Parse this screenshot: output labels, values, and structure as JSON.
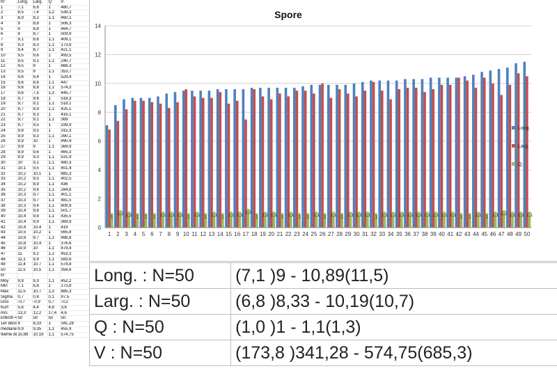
{
  "sheet": {
    "header": [
      "N°",
      "Long.",
      "Larg.",
      "Q",
      "V"
    ],
    "rows": [
      [
        "1",
        "7,1",
        "6,8",
        "1",
        "480,7"
      ],
      [
        "2",
        "8,5",
        "7,4",
        "1,2",
        "539,3"
      ],
      [
        "3",
        "8,9",
        "8,2",
        "1,1",
        "460,1"
      ],
      [
        "4",
        "9",
        "8,8",
        "1",
        "506,3"
      ],
      [
        "5",
        "9",
        "8,8",
        "1",
        "464,7"
      ],
      [
        "6",
        "9",
        "8,7",
        "1",
        "509,9"
      ],
      [
        "7",
        "9,1",
        "8,6",
        "1,1",
        "409,1"
      ],
      [
        "8",
        "9,3",
        "8,3",
        "1,1",
        "173,8"
      ],
      [
        "9",
        "9,4",
        "8,7",
        "1,1",
        "421,1"
      ],
      [
        "10",
        "9,5",
        "9,6",
        "1",
        "493,5"
      ],
      [
        "11",
        "9,5",
        "9,1",
        "1,1",
        "240,7"
      ],
      [
        "12",
        "9,5",
        "9",
        "1",
        "666,3"
      ],
      [
        "13",
        "9,5",
        "9",
        "1,1",
        "353,7"
      ],
      [
        "14",
        "9,6",
        "9,4",
        "1",
        "529,4"
      ],
      [
        "15",
        "9,6",
        "8,6",
        "1,1",
        "447"
      ],
      [
        "16",
        "9,6",
        "8,8",
        "1,1",
        "574,3"
      ],
      [
        "17",
        "9,6",
        "7,5",
        "1,3",
        "445,7"
      ],
      [
        "18",
        "9,7",
        "9,6",
        "1",
        "518,3"
      ],
      [
        "19",
        "9,7",
        "9,1",
        "1,1",
        "518,1"
      ],
      [
        "20",
        "9,7",
        "8,9",
        "1,1",
        "425,1"
      ],
      [
        "21",
        "9,7",
        "9,3",
        "1",
        "416,1"
      ],
      [
        "22",
        "9,7",
        "9,1",
        "1,1",
        "369"
      ],
      [
        "23",
        "9,7",
        "9,5",
        "1",
        "339,9"
      ],
      [
        "24",
        "9,8",
        "9,5",
        "1",
        "315,3"
      ],
      [
        "25",
        "9,9",
        "9,3",
        "1,1",
        "390,1"
      ],
      [
        "26",
        "9,9",
        "10",
        "1",
        "490,4"
      ],
      [
        "27",
        "9,9",
        "9",
        "1,1",
        "369,9"
      ],
      [
        "28",
        "9,9",
        "9,6",
        "1",
        "465,3"
      ],
      [
        "29",
        "9,9",
        "9,3",
        "1,1",
        "531,9"
      ],
      [
        "30",
        "10",
        "9,1",
        "1,1",
        "480,3"
      ],
      [
        "31",
        "10,1",
        "9,5",
        "1,1",
        "401,4"
      ],
      [
        "32",
        "10,2",
        "10,1",
        "1",
        "685,3"
      ],
      [
        "33",
        "10,2",
        "9,5",
        "1,1",
        "402,5"
      ],
      [
        "34",
        "10,2",
        "8,9",
        "1,1",
        "436"
      ],
      [
        "35",
        "10,2",
        "9,6",
        "1,1",
        "284,6"
      ],
      [
        "36",
        "10,3",
        "9,7",
        "1,1",
        "401,1"
      ],
      [
        "37",
        "10,3",
        "9,7",
        "1,1",
        "481,5"
      ],
      [
        "38",
        "10,3",
        "9,4",
        "1,1",
        "609,9"
      ],
      [
        "39",
        "10,4",
        "9,6",
        "1,1",
        "501,7"
      ],
      [
        "40",
        "10,4",
        "9,9",
        "1,1",
        "435,5"
      ],
      [
        "41",
        "10,4",
        "9,9",
        "1,1",
        "369,9"
      ],
      [
        "42",
        "10,4",
        "10,4",
        "1",
        "419"
      ],
      [
        "43",
        "10,5",
        "10,2",
        "1",
        "565,8"
      ],
      [
        "44",
        "10,6",
        "9,7",
        "1,1",
        "488,8"
      ],
      [
        "45",
        "10,8",
        "10,4",
        "1",
        "376,6"
      ],
      [
        "46",
        "10,9",
        "10",
        "1,1",
        "479,4"
      ],
      [
        "47",
        "11",
        "9,2",
        "1,2",
        "453,3"
      ],
      [
        "48",
        "11,1",
        "9,9",
        "1,1",
        "583,6"
      ],
      [
        "49",
        "11,4",
        "10,7",
        "1,1",
        "574,8"
      ],
      [
        "50",
        "11,5",
        "10,5",
        "1,1",
        "356,6"
      ]
    ],
    "stats_header": [
      "N°",
      "",
      "",
      "",
      ""
    ],
    "stats": [
      [
        "Moy",
        "9,9",
        "9,3",
        "1,1",
        "452,2"
      ],
      [
        "Min",
        "7,1",
        "6,8",
        "1",
        "173,8"
      ],
      [
        "Max",
        "11,5",
        "10,7",
        "1,3",
        "685,3"
      ],
      [
        "Sigma",
        "0,7",
        "0,8",
        "0,1",
        "97,5"
      ],
      [
        "Diss",
        "-0,7",
        "-0,9",
        "0,7",
        "-0,2"
      ],
      [
        "Kurt",
        "5,6",
        "4,4",
        "4,8",
        "3,6"
      ],
      [
        "m/s",
        "13,3",
        "12,2",
        "17,4",
        "4,6"
      ],
      [
        "Effectif =",
        "50",
        "50",
        "50",
        "50"
      ],
      [
        "1er décile",
        "9",
        "8,33",
        "1",
        "341,28"
      ],
      [
        "médiane",
        "9,9",
        "9,35",
        "1,1",
        "455,9"
      ],
      [
        "9ième décile",
        "10,89",
        "10,19",
        "1,1",
        "574,75"
      ]
    ]
  },
  "chart_data": {
    "type": "bar",
    "title": "Spore",
    "xlabel": "",
    "ylabel": "",
    "ylim": [
      0,
      14
    ],
    "yticks": [
      0,
      2,
      4,
      6,
      8,
      10,
      12,
      14
    ],
    "grid": true,
    "legend_position": "right",
    "data_labels_series": "Q.",
    "categories": [
      "1",
      "2",
      "3",
      "4",
      "5",
      "6",
      "7",
      "8",
      "9",
      "10",
      "11",
      "12",
      "13",
      "14",
      "15",
      "16",
      "17",
      "18",
      "19",
      "20",
      "21",
      "22",
      "23",
      "24",
      "25",
      "26",
      "27",
      "28",
      "29",
      "30",
      "31",
      "32",
      "33",
      "34",
      "35",
      "36",
      "37",
      "38",
      "39",
      "40",
      "41",
      "42",
      "43",
      "44",
      "45",
      "46",
      "47",
      "48",
      "49",
      "50"
    ],
    "series": [
      {
        "name": "Long.",
        "color": "#4f81bd",
        "values": [
          7.1,
          8.5,
          8.9,
          9,
          9,
          9,
          9.1,
          9.3,
          9.4,
          9.5,
          9.5,
          9.5,
          9.5,
          9.6,
          9.6,
          9.6,
          9.6,
          9.7,
          9.7,
          9.7,
          9.7,
          9.7,
          9.7,
          9.8,
          9.9,
          9.9,
          9.9,
          9.9,
          9.9,
          10,
          10.1,
          10.2,
          10.2,
          10.2,
          10.2,
          10.3,
          10.3,
          10.3,
          10.4,
          10.4,
          10.4,
          10.4,
          10.5,
          10.6,
          10.8,
          10.9,
          11,
          11.1,
          11.4,
          11.5
        ]
      },
      {
        "name": "Larg.",
        "color": "#c0504d",
        "values": [
          6.8,
          7.4,
          8.2,
          8.8,
          8.8,
          8.7,
          8.6,
          8.3,
          8.7,
          9.6,
          9.1,
          9,
          9,
          9.4,
          8.6,
          8.8,
          7.5,
          9.6,
          9.1,
          8.9,
          9.3,
          9.1,
          9.5,
          9.5,
          9.3,
          10,
          9,
          9.6,
          9.3,
          9.1,
          9.5,
          10.1,
          9.5,
          8.9,
          9.6,
          9.7,
          9.7,
          9.4,
          9.6,
          9.9,
          9.9,
          10.4,
          10.2,
          9.7,
          10.4,
          10,
          9.2,
          9.9,
          10.7,
          10.5
        ]
      },
      {
        "name": "Q.",
        "color": "#9bbb59",
        "values": [
          1,
          1.2,
          1.1,
          1,
          1,
          1,
          1.1,
          1.1,
          1.1,
          1,
          1.1,
          1,
          1.1,
          1,
          1.1,
          1.1,
          1.3,
          1,
          1.1,
          1.1,
          1,
          1.1,
          1,
          1,
          1.1,
          1,
          1.1,
          1,
          1.1,
          1.1,
          1.1,
          1,
          1.1,
          1.1,
          1.1,
          1.1,
          1.1,
          1.1,
          1.1,
          1.1,
          1.1,
          1,
          1,
          1.1,
          1,
          1.1,
          1.2,
          1.1,
          1.1,
          1.1
        ],
        "labels": [
          "1",
          "1,2",
          "1,1",
          "1",
          "1",
          "1",
          "1,1",
          "1,1",
          "1,1",
          "1",
          "1,1",
          "1",
          "1,1",
          "1",
          "1,1",
          "1,1",
          "1,3",
          "1",
          "1,1",
          "1,1",
          "1",
          "1,1",
          "1",
          "1",
          "1,1",
          "1",
          "1,1",
          "1",
          "1,1",
          "1,1",
          "1,1",
          "1",
          "1,1",
          "1,1",
          "1,1",
          "1,1",
          "1,1",
          "1,1",
          "1,1",
          "1,1",
          "1,1",
          "1",
          "1",
          "1,1",
          "1",
          "1,1",
          "1,2",
          "1,1",
          "1,1",
          "1,1"
        ]
      }
    ]
  },
  "summary": {
    "rows": [
      {
        "label": "Long. : N=50",
        "value": "(7,1 )9 - 10,89(11,5)"
      },
      {
        "label": "Larg. : N=50",
        "value": "(6,8 )8,33 - 10,19(10,7)"
      },
      {
        "label": "Q : N=50",
        "value": "(1,0 )1 - 1,1(1,3)"
      },
      {
        "label": "V : N=50",
        "value": "(173,8 )341,28 - 574,75(685,3)"
      }
    ]
  }
}
